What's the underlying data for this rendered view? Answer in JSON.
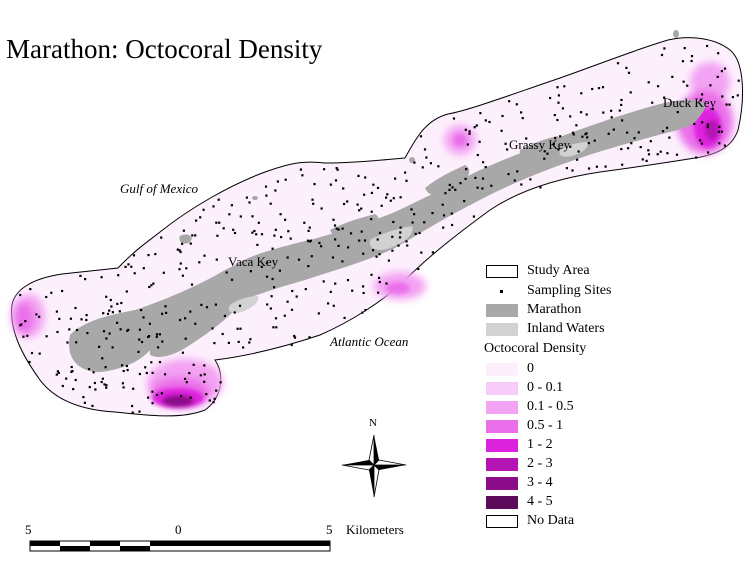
{
  "title": "Marathon:  Octocoral Density",
  "places": {
    "duck_key": "Duck Key",
    "grassy_key": "Grassy Key",
    "vaca_key": "Vaca Key"
  },
  "water_bodies": {
    "gulf": "Gulf of Mexico",
    "atlantic": "Atlantic Ocean"
  },
  "legend": {
    "study_area": "Study Area",
    "sampling_sites": "Sampling Sites",
    "marathon": "Marathon",
    "inland_waters": "Inland Waters",
    "density_heading": "Octocoral Density",
    "classes": [
      {
        "label": "0",
        "color": "#fdf0fd"
      },
      {
        "label": "0 - 0.1",
        "color": "#f8ccf8"
      },
      {
        "label": "0.1 - 0.5",
        "color": "#f3a3f3"
      },
      {
        "label": "0.5 - 1",
        "color": "#ea6fea"
      },
      {
        "label": "1 - 2",
        "color": "#dd22dd"
      },
      {
        "label": "2 - 3",
        "color": "#b414b4"
      },
      {
        "label": "3 - 4",
        "color": "#8a0c8a"
      },
      {
        "label": "4 - 5",
        "color": "#5c0a5c"
      }
    ],
    "no_data": "No Data"
  },
  "colors": {
    "land": "#a8a8a8",
    "inland_water": "#d2d2d2",
    "study_area_fill": "#fdf0fd"
  },
  "compass": {
    "north_label": "N"
  },
  "scale_bar": {
    "left": "5",
    "mid": "0",
    "right": "5",
    "units": "Kilometers"
  }
}
